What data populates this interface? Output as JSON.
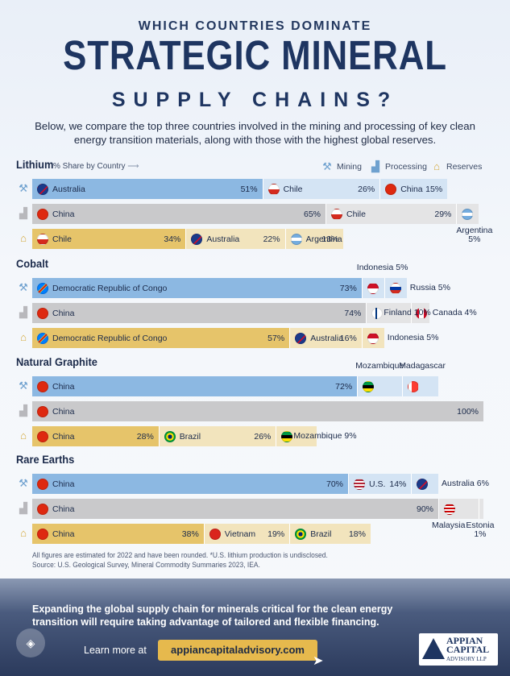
{
  "header": {
    "kicker": "WHICH COUNTRIES DOMINATE",
    "title": "STRATEGIC MINERAL",
    "title2": "SUPPLY CHAINS?",
    "intro": "Below, we compare the top three countries involved in the mining and processing of key clean energy transition materials, along with those with the highest global reserves."
  },
  "legend": {
    "subtitle": "% Share by Country",
    "arrow": "⟶",
    "mining": "Mining",
    "processing": "Processing",
    "reserves": "Reserves"
  },
  "colors": {
    "mining": "#8cb8e2",
    "processing": "#c9c9cb",
    "reserves": "#e6c46a",
    "mining_bg": "#d4e4f4",
    "processing_bg": "#e4e4e5",
    "reserves_bg": "#f2e4bd"
  },
  "icons": {
    "mining": "pickaxe-icon",
    "processing": "factory-icon",
    "reserves": "bank-icon"
  },
  "chart_data": {
    "type": "bar",
    "unit": "% Share by Country",
    "minerals": [
      {
        "name": "Lithium",
        "rows": [
          {
            "stage": "Mining",
            "segments": [
              {
                "country": "Australia",
                "value": 51
              },
              {
                "country": "Chile",
                "value": 26
              },
              {
                "country": "China",
                "value": 15
              }
            ]
          },
          {
            "stage": "Processing",
            "segments": [
              {
                "country": "China",
                "value": 65
              },
              {
                "country": "Chile",
                "value": 29
              },
              {
                "country": "Argentina",
                "value": 5
              }
            ]
          },
          {
            "stage": "Reserves",
            "segments": [
              {
                "country": "Chile",
                "value": 34
              },
              {
                "country": "Australia",
                "value": 22
              },
              {
                "country": "Argentina",
                "value": 13
              }
            ]
          }
        ]
      },
      {
        "name": "Cobalt",
        "rows": [
          {
            "stage": "Mining",
            "segments": [
              {
                "country": "Democratic Republic of Congo",
                "value": 73
              },
              {
                "country": "Indonesia",
                "value": 5
              },
              {
                "country": "Russia",
                "value": 5
              }
            ]
          },
          {
            "stage": "Processing",
            "segments": [
              {
                "country": "China",
                "value": 74
              },
              {
                "country": "Finland",
                "value": 10
              },
              {
                "country": "Canada",
                "value": 4
              }
            ]
          },
          {
            "stage": "Reserves",
            "segments": [
              {
                "country": "Democratic Republic of Congo",
                "value": 57
              },
              {
                "country": "Australia",
                "value": 16
              },
              {
                "country": "Indonesia",
                "value": 5
              }
            ]
          }
        ]
      },
      {
        "name": "Natural Graphite",
        "rows": [
          {
            "stage": "Mining",
            "segments": [
              {
                "country": "China",
                "value": 72
              },
              {
                "country": "Mozambique",
                "value": 10
              },
              {
                "country": "Madagascar",
                "value": 8
              }
            ]
          },
          {
            "stage": "Processing",
            "segments": [
              {
                "country": "China",
                "value": 100
              }
            ]
          },
          {
            "stage": "Reserves",
            "segments": [
              {
                "country": "China",
                "value": 28
              },
              {
                "country": "Brazil",
                "value": 26
              },
              {
                "country": "Mozambique",
                "value": 9
              }
            ]
          }
        ]
      },
      {
        "name": "Rare Earths",
        "rows": [
          {
            "stage": "Mining",
            "segments": [
              {
                "country": "China",
                "value": 70
              },
              {
                "country": "U.S.",
                "value": 14
              },
              {
                "country": "Australia",
                "value": 6
              }
            ]
          },
          {
            "stage": "Processing",
            "segments": [
              {
                "country": "China",
                "value": 90
              },
              {
                "country": "Malaysia",
                "value": 9
              },
              {
                "country": "Estonia",
                "value": 1
              }
            ]
          },
          {
            "stage": "Reserves",
            "segments": [
              {
                "country": "China",
                "value": 38
              },
              {
                "country": "Vietnam",
                "value": 19
              },
              {
                "country": "Brazil",
                "value": 18
              }
            ]
          }
        ]
      }
    ]
  },
  "footnote": {
    "line1": "All figures are estimated for 2022 and have been rounded. *U.S. lithium production is undisclosed.",
    "line2": "Source: U.S. Geological Survey, Mineral Commodity Summaries 2023, IEA."
  },
  "footer": {
    "text": "Expanding the global supply chain for minerals critical for the clean energy transition will require taking advantage of tailored and flexible financing.",
    "learn": "Learn more at",
    "url": "appiancapitaladvisory.com",
    "logo1": "APPIAN",
    "logo2": "CAPITAL",
    "logo3": "ADVISORY LLP"
  }
}
